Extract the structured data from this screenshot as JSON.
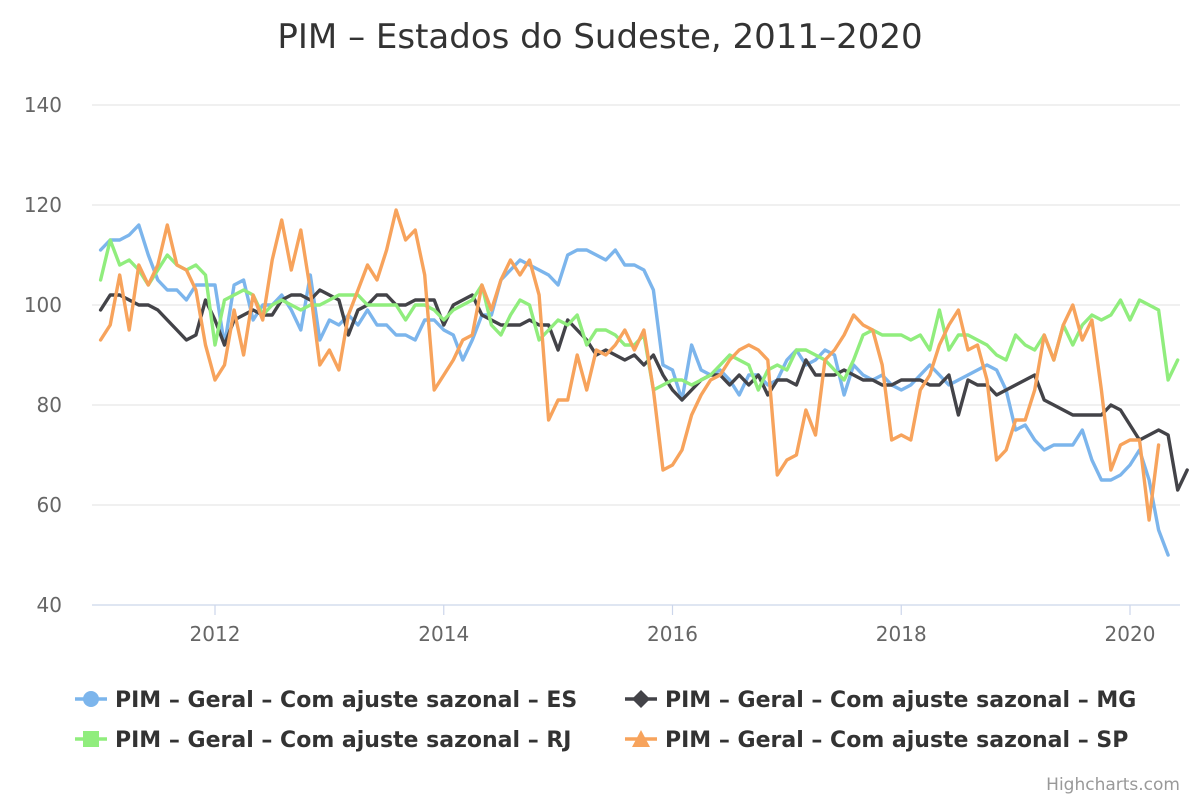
{
  "chart_data": {
    "type": "line",
    "title": "PIM – Estados do Sudeste, 2011–2020",
    "xlabel": "",
    "ylabel": "",
    "x_start": "2011-01",
    "x_ticks": [
      "2012",
      "2014",
      "2016",
      "2018",
      "2020"
    ],
    "ylim": [
      40,
      145
    ],
    "y_ticks": [
      40,
      60,
      80,
      100,
      120,
      140
    ],
    "grid": true,
    "legend": "bottom",
    "credits": "Highcharts.com",
    "series": [
      {
        "name": "PIM – Geral – Com ajuste sazonal – ES",
        "color": "#7cb5ec",
        "marker": "circle",
        "values": [
          111,
          113,
          113,
          114,
          116,
          110,
          105,
          103,
          103,
          101,
          104,
          104,
          104,
          92,
          104,
          105,
          97,
          100,
          100,
          102,
          99,
          95,
          106,
          93,
          97,
          96,
          98,
          96,
          99,
          96,
          96,
          94,
          94,
          93,
          97,
          97,
          95,
          94,
          89,
          93,
          98,
          98,
          105,
          107,
          109,
          108,
          107,
          106,
          104,
          110,
          111,
          111,
          110,
          109,
          111,
          108,
          108,
          107,
          103,
          88,
          87,
          81,
          92,
          87,
          86,
          87,
          85,
          82,
          86,
          86,
          84,
          85,
          89,
          91,
          88,
          89,
          91,
          90,
          82,
          88,
          86,
          85,
          86,
          84,
          83,
          84,
          86,
          88,
          86,
          84,
          85,
          86,
          87,
          88,
          87,
          83,
          75,
          76,
          73,
          71,
          72,
          72,
          72,
          75,
          69,
          65,
          65,
          66,
          68,
          71,
          65,
          55,
          50
        ]
      },
      {
        "name": "PIM – Geral – Com ajuste sazonal – MG",
        "color": "#434348",
        "marker": "diamond",
        "values": [
          99,
          102,
          102,
          101,
          100,
          100,
          99,
          97,
          95,
          93,
          94,
          101,
          97,
          92,
          97,
          98,
          99,
          98,
          98,
          101,
          102,
          102,
          101,
          103,
          102,
          101,
          94,
          99,
          100,
          102,
          102,
          100,
          100,
          101,
          101,
          101,
          96,
          100,
          101,
          102,
          98,
          97,
          96,
          96,
          96,
          97,
          96,
          96,
          91,
          97,
          95,
          93,
          90,
          91,
          90,
          89,
          90,
          88,
          90,
          86,
          83,
          81,
          83,
          85,
          86,
          86,
          84,
          86,
          84,
          86,
          82,
          85,
          85,
          84,
          89,
          86,
          86,
          86,
          87,
          86,
          85,
          85,
          84,
          84,
          85,
          85,
          85,
          84,
          84,
          86,
          78,
          85,
          84,
          84,
          82,
          83,
          84,
          85,
          86,
          81,
          80,
          79,
          78,
          78,
          78,
          78,
          80,
          79,
          76,
          73,
          74,
          75,
          74,
          63,
          67
        ]
      },
      {
        "name": "PIM – Geral – Com ajuste sazonal – RJ",
        "color": "#90ed7d",
        "marker": "square",
        "values": [
          105,
          113,
          108,
          109,
          107,
          104,
          107,
          110,
          108,
          107,
          108,
          106,
          92,
          101,
          102,
          103,
          102,
          98,
          100,
          101,
          100,
          99,
          100,
          100,
          101,
          102,
          102,
          102,
          100,
          100,
          100,
          100,
          97,
          100,
          100,
          99,
          97,
          99,
          100,
          101,
          104,
          96,
          94,
          98,
          101,
          100,
          93,
          95,
          97,
          96,
          98,
          92,
          95,
          95,
          94,
          92,
          92,
          94,
          83,
          84,
          85,
          85,
          84,
          85,
          86,
          88,
          90,
          89,
          88,
          83,
          87,
          88,
          87,
          91,
          91,
          90,
          89,
          87,
          85,
          89,
          94,
          95,
          94,
          94,
          94,
          93,
          94,
          91,
          99,
          91,
          94,
          94,
          93,
          92,
          90,
          89,
          94,
          92,
          91,
          94,
          89,
          96,
          92,
          96,
          98,
          97,
          98,
          101,
          97,
          101,
          100,
          99,
          85,
          89
        ]
      },
      {
        "name": "PIM – Geral – Com ajuste sazonal – SP",
        "color": "#f7a35c",
        "marker": "triangle",
        "values": [
          93,
          96,
          106,
          95,
          108,
          104,
          108,
          116,
          108,
          107,
          103,
          92,
          85,
          88,
          99,
          90,
          102,
          97,
          109,
          117,
          107,
          115,
          103,
          88,
          91,
          87,
          98,
          103,
          108,
          105,
          111,
          119,
          113,
          115,
          106,
          83,
          86,
          89,
          93,
          94,
          104,
          99,
          105,
          109,
          106,
          109,
          102,
          77,
          81,
          81,
          90,
          83,
          91,
          90,
          92,
          95,
          91,
          95,
          83,
          67,
          68,
          71,
          78,
          82,
          85,
          86,
          89,
          91,
          92,
          91,
          89,
          66,
          69,
          70,
          79,
          74,
          89,
          91,
          94,
          98,
          96,
          95,
          88,
          73,
          74,
          73,
          83,
          86,
          92,
          96,
          99,
          91,
          92,
          85,
          69,
          71,
          77,
          77,
          83,
          94,
          89,
          96,
          100,
          93,
          97,
          83,
          67,
          72,
          73,
          73,
          57,
          72
        ]
      }
    ]
  }
}
